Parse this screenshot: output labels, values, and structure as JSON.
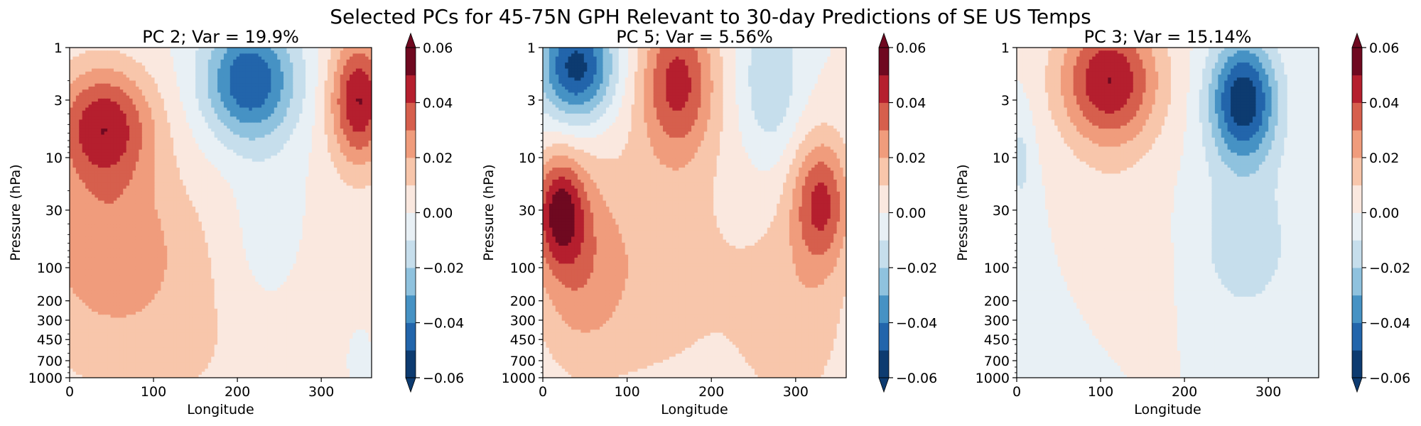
{
  "figure": {
    "title": "Selected PCs for 45-75N GPH Relevant to 30-day Predictions of SE US Temps"
  },
  "colors": {
    "levels": [
      "#0d3b70",
      "#2265ab",
      "#4692c4",
      "#8fc2de",
      "#c6deec",
      "#e8f0f5",
      "#fae8df",
      "#f8c6ab",
      "#f09c7c",
      "#d65f4d",
      "#b51f2e",
      "#6f0920"
    ]
  },
  "chart_data": [
    {
      "type": "heatmap",
      "title": "PC 2; Var = 19.9%",
      "xlabel": "Longitude",
      "ylabel": "Pressure (hPa)",
      "xlim": [
        0,
        360
      ],
      "xticks": [
        "0",
        "100",
        "200",
        "300"
      ],
      "ylim": [
        1000,
        1
      ],
      "yscale": "log",
      "yticks": [
        "1",
        "3",
        "10",
        "30",
        "100",
        "200",
        "300",
        "450",
        "700",
        "1000"
      ],
      "colorbar": {
        "min": -0.06,
        "max": 0.06,
        "step": 0.01,
        "extend": "both",
        "ticks": [
          "−0.06",
          "−0.04",
          "−0.02",
          "0.00",
          "0.02",
          "0.04",
          "0.06"
        ]
      },
      "features": [
        {
          "lon": 40,
          "p": 5,
          "value": 0.045,
          "lon_width": 60,
          "logp_width": 0.55
        },
        {
          "lon": 50,
          "p": 60,
          "value": 0.022,
          "lon_width": 90,
          "logp_width": 0.8
        },
        {
          "lon": 120,
          "p": 500,
          "value": 0.01,
          "lon_width": 260,
          "logp_width": 1.4
        },
        {
          "lon": 215,
          "p": 2,
          "value": -0.05,
          "lon_width": 55,
          "logp_width": 0.55
        },
        {
          "lon": 235,
          "p": 60,
          "value": -0.01,
          "lon_width": 45,
          "logp_width": 0.8
        },
        {
          "lon": 345,
          "p": 3,
          "value": 0.05,
          "lon_width": 35,
          "logp_width": 0.6
        },
        {
          "lon": 345,
          "p": 700,
          "value": -0.008,
          "lon_width": 20,
          "logp_width": 0.4
        }
      ]
    },
    {
      "type": "heatmap",
      "title": "PC 5; Var = 5.56%",
      "xlabel": "Longitude",
      "ylabel": "Pressure (hPa)",
      "xlim": [
        0,
        360
      ],
      "xticks": [
        "0",
        "100",
        "200",
        "300"
      ],
      "ylim": [
        1000,
        1
      ],
      "yscale": "log",
      "yticks": [
        "1",
        "3",
        "10",
        "30",
        "100",
        "200",
        "300",
        "450",
        "700",
        "1000"
      ],
      "colorbar": {
        "min": -0.06,
        "max": 0.06,
        "step": 0.01,
        "extend": "both",
        "ticks": [
          "−0.06",
          "−0.04",
          "−0.02",
          "0.00",
          "0.02",
          "0.04",
          "0.06"
        ]
      },
      "features": [
        {
          "lon": 40,
          "p": 1.5,
          "value": -0.055,
          "lon_width": 45,
          "logp_width": 0.5
        },
        {
          "lon": 20,
          "p": 30,
          "value": 0.042,
          "lon_width": 30,
          "logp_width": 0.5
        },
        {
          "lon": 40,
          "p": 100,
          "value": 0.02,
          "lon_width": 55,
          "logp_width": 0.9
        },
        {
          "lon": 160,
          "p": 2,
          "value": 0.042,
          "lon_width": 45,
          "logp_width": 0.7
        },
        {
          "lon": 130,
          "p": 100,
          "value": 0.015,
          "lon_width": 110,
          "logp_width": 1.3
        },
        {
          "lon": 270,
          "p": 2,
          "value": -0.02,
          "lon_width": 35,
          "logp_width": 0.7
        },
        {
          "lon": 330,
          "p": 25,
          "value": 0.04,
          "lon_width": 35,
          "logp_width": 0.6
        },
        {
          "lon": 300,
          "p": 300,
          "value": 0.015,
          "lon_width": 70,
          "logp_width": 1.0
        }
      ]
    },
    {
      "type": "heatmap",
      "title": "PC 3; Var = 15.14%",
      "xlabel": "Longitude",
      "ylabel": "Pressure (hPa)",
      "xlim": [
        0,
        360
      ],
      "xticks": [
        "0",
        "100",
        "200",
        "300"
      ],
      "ylim": [
        1000,
        1
      ],
      "yscale": "log",
      "yticks": [
        "1",
        "3",
        "10",
        "30",
        "100",
        "200",
        "300",
        "450",
        "700",
        "1000"
      ],
      "colorbar": {
        "min": -0.06,
        "max": 0.06,
        "step": 0.01,
        "extend": "both",
        "ticks": [
          "−0.06",
          "−0.04",
          "−0.02",
          "0.00",
          "0.02",
          "0.04",
          "0.06"
        ]
      },
      "features": [
        {
          "lon": 110,
          "p": 2,
          "value": 0.05,
          "lon_width": 60,
          "logp_width": 0.6
        },
        {
          "lon": 100,
          "p": 80,
          "value": 0.01,
          "lon_width": 90,
          "logp_width": 0.9
        },
        {
          "lon": 270,
          "p": 3,
          "value": -0.058,
          "lon_width": 40,
          "logp_width": 0.55
        },
        {
          "lon": 270,
          "p": 60,
          "value": -0.015,
          "lon_width": 70,
          "logp_width": 0.8
        },
        {
          "lon": 5,
          "p": 10,
          "value": -0.012,
          "lon_width": 15,
          "logp_width": 0.5
        },
        {
          "lon": 40,
          "p": 200,
          "value": -0.008,
          "lon_width": 90,
          "logp_width": 1.2
        }
      ]
    }
  ]
}
